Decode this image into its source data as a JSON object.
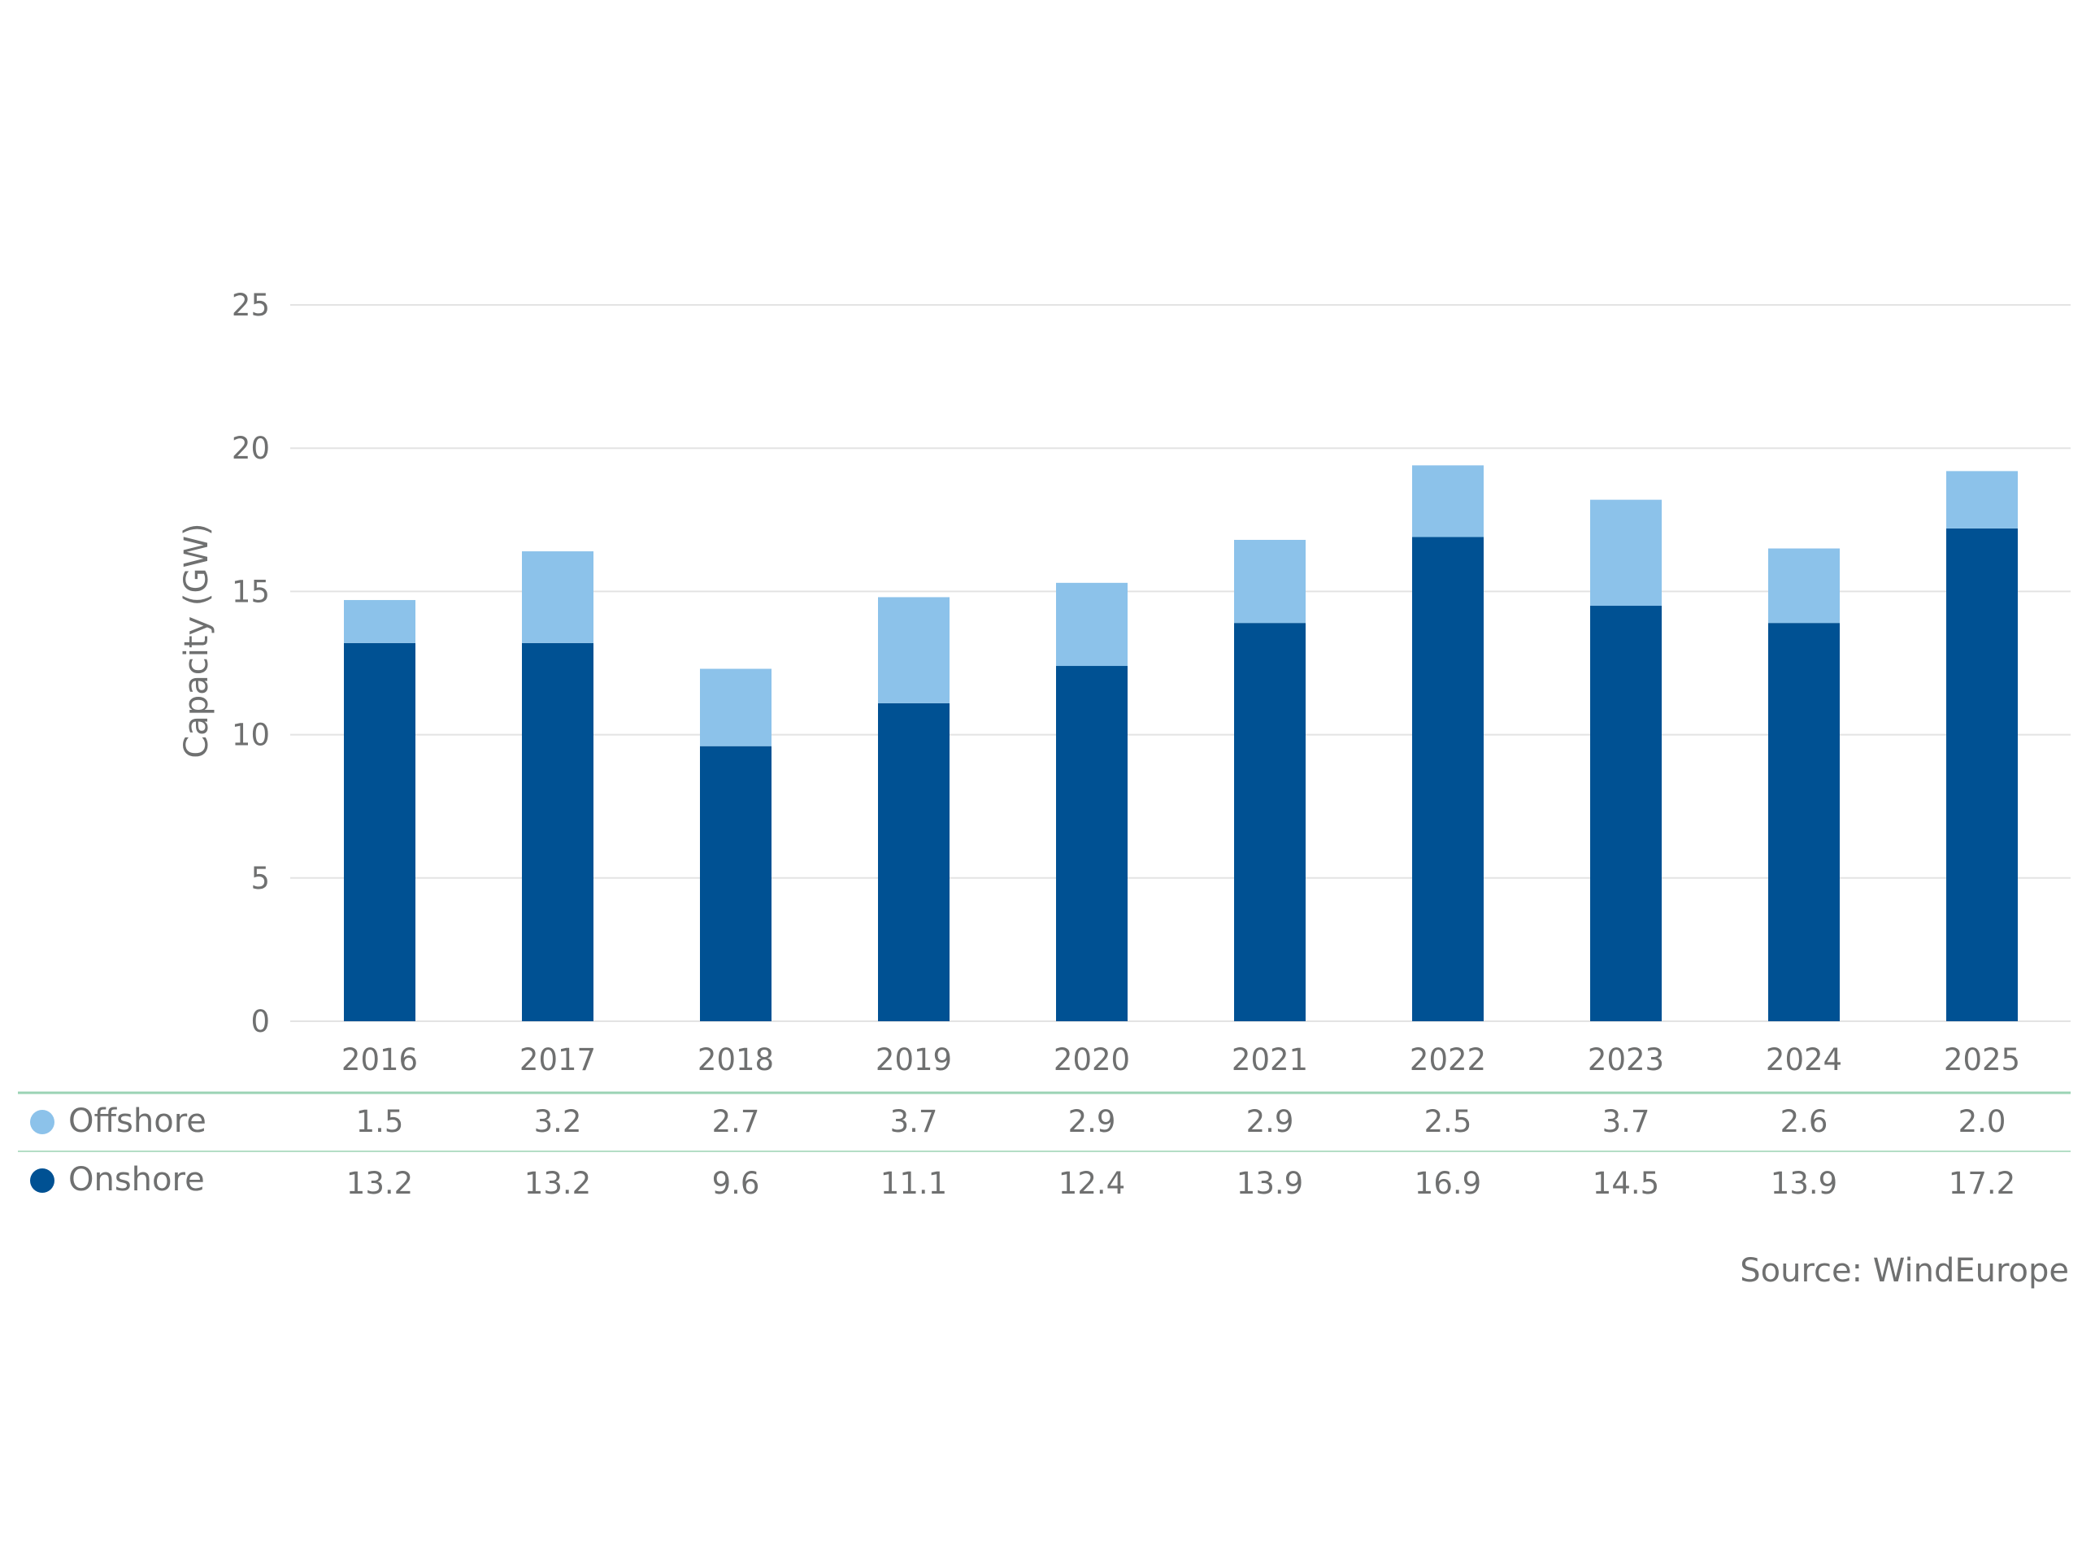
{
  "chart_data": {
    "type": "bar",
    "stacked": true,
    "categories": [
      "2016",
      "2017",
      "2018",
      "2019",
      "2020",
      "2021",
      "2022",
      "2023",
      "2024",
      "2025"
    ],
    "series": [
      {
        "name": "Onshore",
        "color": "#005193",
        "values": [
          13.2,
          13.2,
          9.6,
          11.1,
          12.4,
          13.9,
          16.9,
          14.5,
          13.9,
          17.2
        ],
        "labels": [
          "13.2",
          "13.2",
          "9.6",
          "11.1",
          "12.4",
          "13.9",
          "16.9",
          "14.5",
          "13.9",
          "17.2"
        ]
      },
      {
        "name": "Offshore",
        "color": "#8cc2ea",
        "values": [
          1.5,
          3.2,
          2.7,
          3.7,
          2.9,
          2.9,
          2.5,
          3.7,
          2.6,
          2.0
        ],
        "labels": [
          "1.5",
          "3.2",
          "2.7",
          "3.7",
          "2.9",
          "2.9",
          "2.5",
          "3.7",
          "2.6",
          "2.0"
        ]
      }
    ],
    "ylabel": "Capacity (GW)",
    "xlabel": "",
    "ylim": [
      0,
      25
    ],
    "yticks": [
      0,
      5,
      10,
      15,
      20,
      25
    ],
    "ytick_labels": [
      "0",
      "5",
      "10",
      "15",
      "20",
      "25"
    ],
    "grid": true,
    "data_table": true,
    "table_rows": [
      "Offshore",
      "Onshore"
    ],
    "source": "Source: WindEurope",
    "colors": {
      "grid": "#e3e3e3",
      "text": "#6f7070",
      "table_line": "#9bd3b4"
    }
  }
}
